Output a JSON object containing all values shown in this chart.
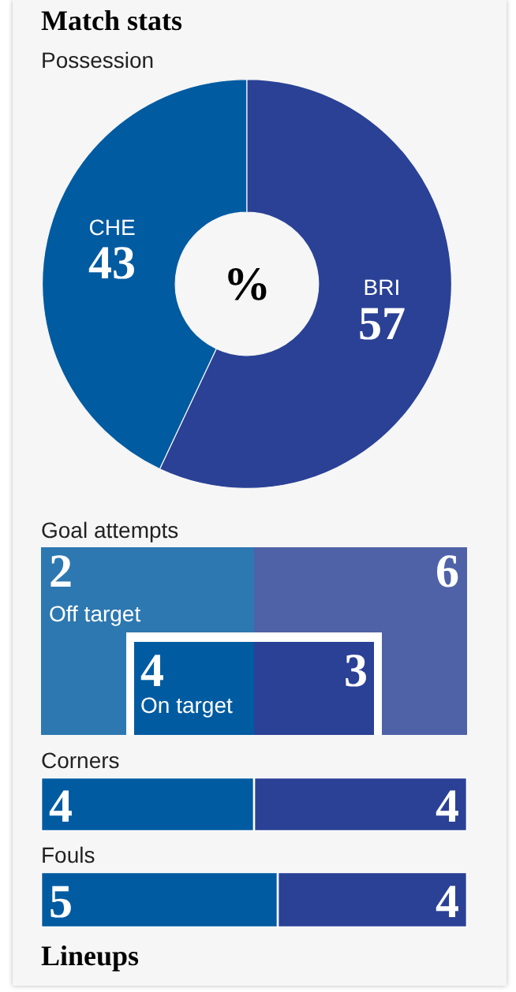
{
  "chart_data": [
    {
      "type": "donut",
      "title": "Match stats",
      "subtitle": "Possession",
      "categories": [
        "CHE",
        "BRI"
      ],
      "values": [
        43,
        57
      ],
      "colors": [
        "#005ba1",
        "#2a4196"
      ],
      "data_labels": true,
      "annotations": [
        "%"
      ]
    },
    {
      "type": "other",
      "title": "Goal attempts",
      "categories": [
        "Off target",
        "On target"
      ],
      "series": [
        {
          "color": "#005ba1",
          "values": [
            2,
            4
          ]
        },
        {
          "color": "#2a4196",
          "values": [
            6,
            3
          ]
        }
      ],
      "data_labels": true
    },
    {
      "type": "bar",
      "title": "Corners",
      "orientation": "horizontal",
      "stacked": true,
      "tick_labels": false,
      "data_labels": true,
      "categories": [
        null
      ],
      "series": [
        {
          "color": "#005ba1",
          "values": [
            4
          ]
        },
        {
          "color": "#2a4196",
          "values": [
            4
          ]
        }
      ]
    },
    {
      "type": "bar",
      "title": "Fouls",
      "orientation": "horizontal",
      "stacked": true,
      "tick_labels": false,
      "data_labels": true,
      "categories": [
        null
      ],
      "series": [
        {
          "color": "#005ba1",
          "values": [
            5
          ]
        },
        {
          "color": "#2a4196",
          "values": [
            4
          ]
        }
      ],
      "annotations": [
        "Lineups"
      ]
    }
  ]
}
